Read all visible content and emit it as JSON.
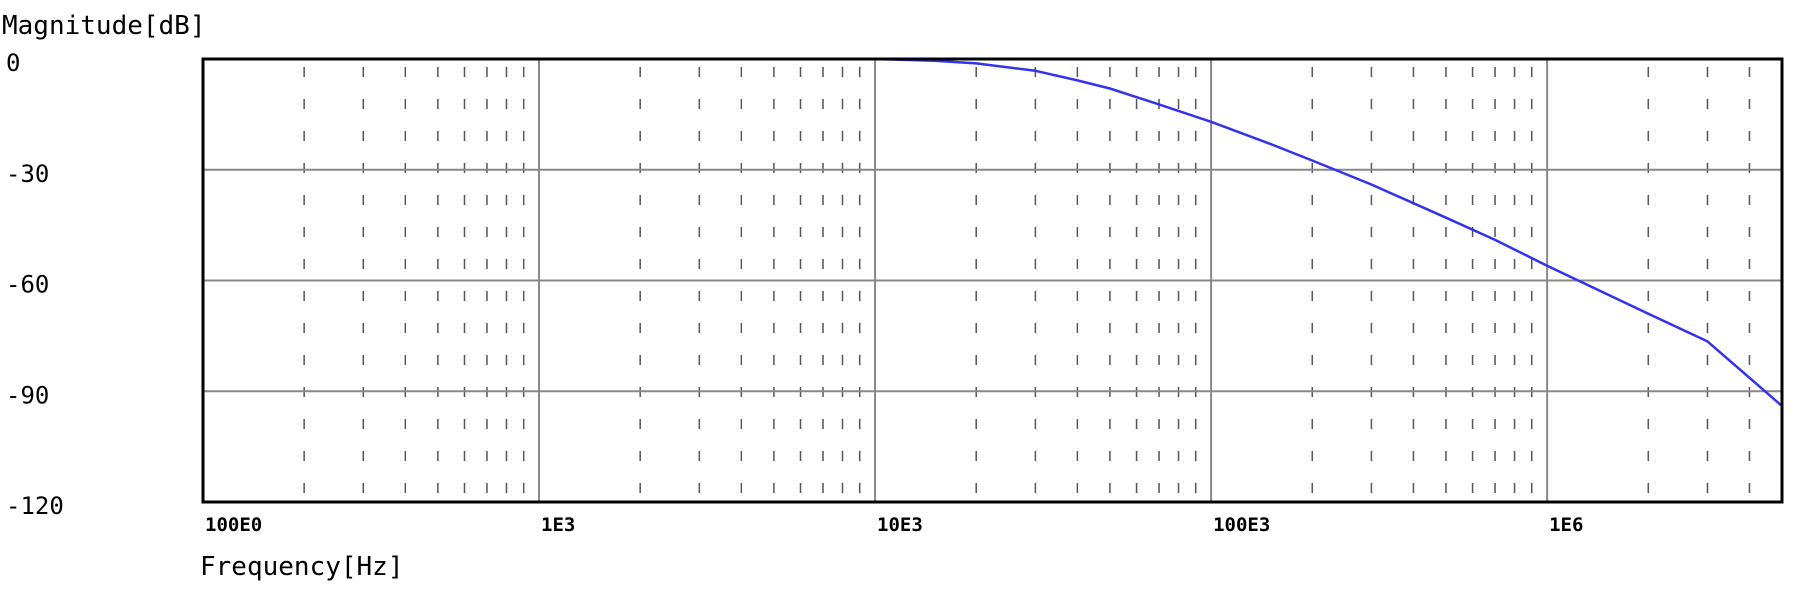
{
  "chart_data": {
    "type": "line",
    "title": "",
    "xlabel": "Frequency[Hz]",
    "ylabel": "Magnitude[dB]",
    "x_scale": "log",
    "xlim": [
      100,
      5000000
    ],
    "ylim": [
      -120,
      0
    ],
    "y_ticks": [
      0,
      -30,
      -60,
      -90,
      -120
    ],
    "y_tick_labels": [
      "0",
      "-30",
      "-60",
      "-90",
      "-120"
    ],
    "x_ticks": [
      100,
      1000,
      10000,
      100000,
      1000000
    ],
    "x_tick_labels": [
      "100E0",
      "1E3",
      "10E3",
      "100E3",
      "1E6"
    ],
    "grid": true,
    "minor_grid": "dashed",
    "line_color": "#3333ee",
    "series": [
      {
        "x": [
          100,
          1000,
          10000,
          15000,
          20000,
          30000,
          40000,
          50000,
          70000,
          100000,
          150000,
          200000,
          300000,
          500000,
          700000,
          1000000,
          2000000,
          3000000,
          5000000
        ],
        "y": [
          0,
          0,
          0,
          -0.5,
          -1.2,
          -3.2,
          -5.8,
          -8.0,
          -12.3,
          -17.0,
          -23.0,
          -27.5,
          -34.0,
          -43.0,
          -49.0,
          -56.0,
          -69.0,
          -76.5,
          -94.0
        ]
      }
    ]
  }
}
